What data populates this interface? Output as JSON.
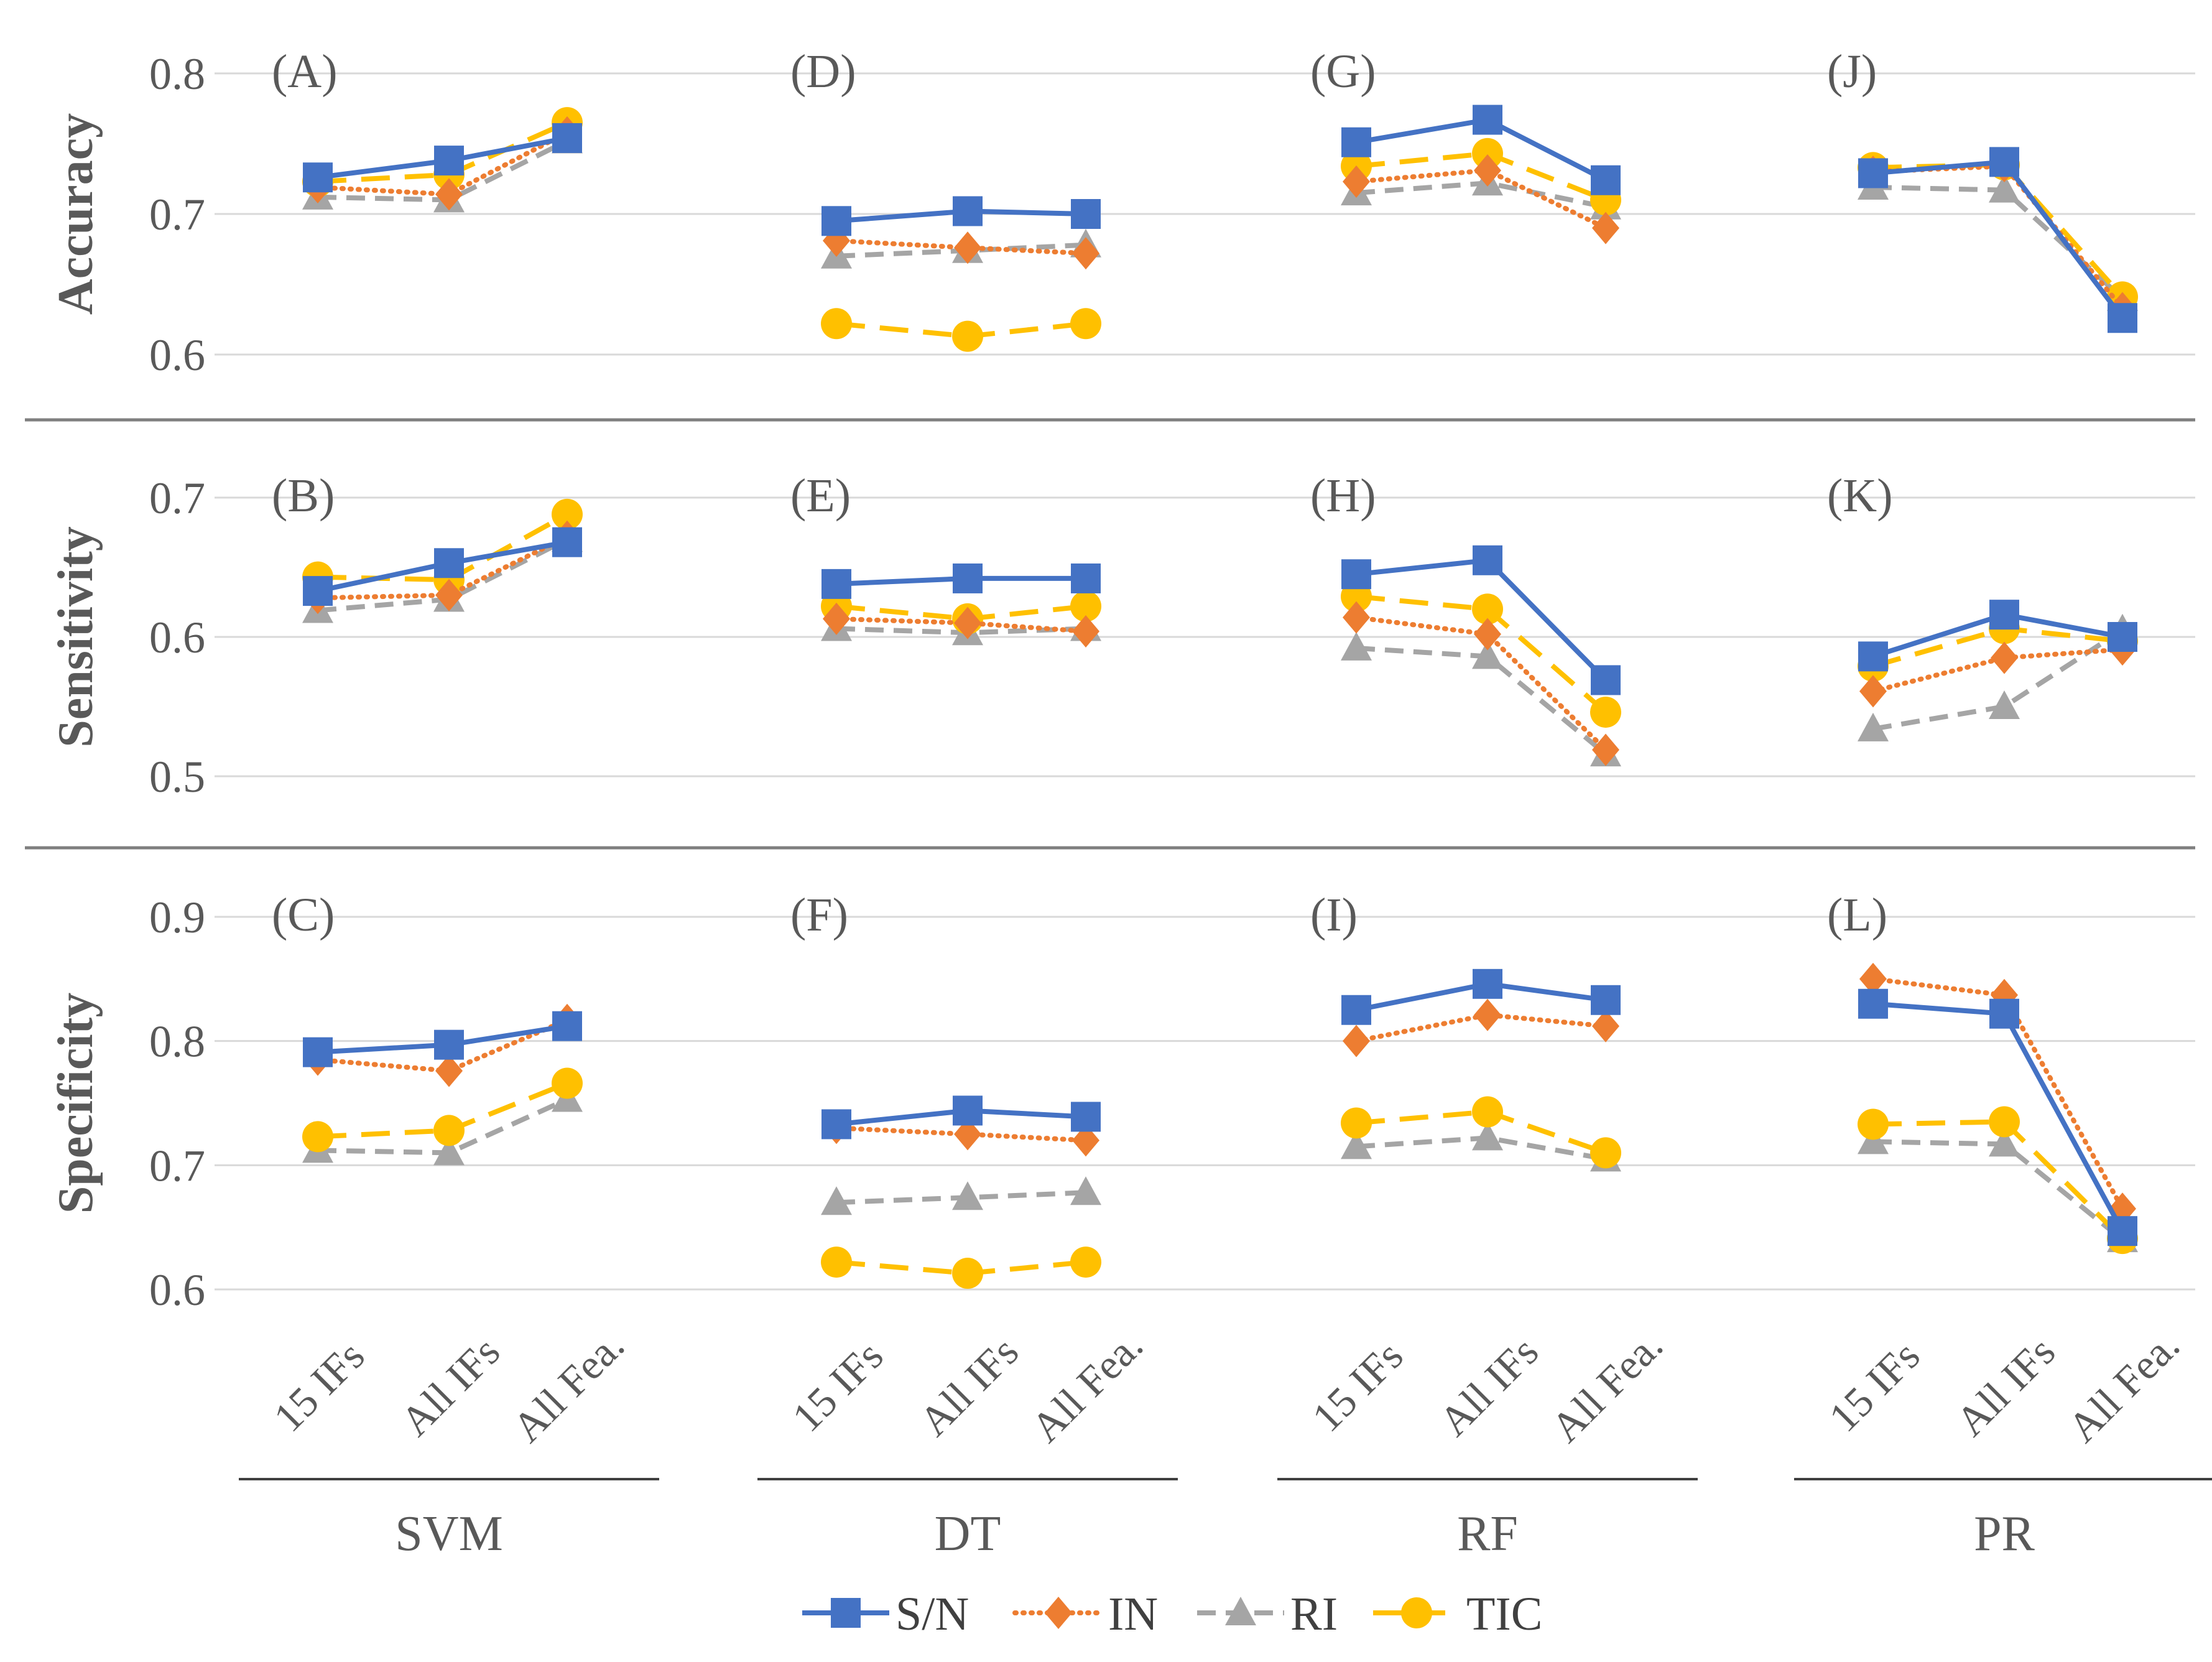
{
  "chart_data": {
    "type": "line",
    "categories": [
      "15 IFs",
      "All IFs",
      "All Fea."
    ],
    "groups": [
      "SVM",
      "DT",
      "RF",
      "PR"
    ],
    "metrics": [
      {
        "name": "Accuracy",
        "ylim": [
          0.6,
          0.8
        ],
        "ticks": [
          "0.8",
          "0.7",
          "0.6"
        ]
      },
      {
        "name": "Sensitivity",
        "ylim": [
          0.5,
          0.7
        ],
        "ticks": [
          "0.7",
          "0.6",
          "0.5"
        ]
      },
      {
        "name": "Specificity",
        "ylim": [
          0.6,
          0.9
        ],
        "ticks": [
          "0.9",
          "0.8",
          "0.7",
          "0.6"
        ]
      }
    ],
    "series_styles": [
      {
        "name": "S/N",
        "color": "#4472C4",
        "marker": "square",
        "dash": "solid"
      },
      {
        "name": "IN",
        "color": "#ED7D31",
        "marker": "diamond",
        "dash": "dotted"
      },
      {
        "name": "RI",
        "color": "#A5A5A5",
        "marker": "triangle",
        "dash": "dashed"
      },
      {
        "name": "TIC",
        "color": "#FFC000",
        "marker": "circle",
        "dash": "longdash"
      }
    ],
    "panels": [
      {
        "label": "(A)",
        "metric": "Accuracy",
        "group": "SVM",
        "series": {
          "S/N": [
            0.726,
            0.738,
            0.754
          ],
          "IN": [
            0.719,
            0.714,
            0.758
          ],
          "RI": [
            0.712,
            0.71,
            0.752
          ],
          "TIC": [
            0.723,
            0.728,
            0.765
          ]
        }
      },
      {
        "label": "(D)",
        "metric": "Accuracy",
        "group": "DT",
        "series": {
          "S/N": [
            0.695,
            0.702,
            0.7
          ],
          "IN": [
            0.681,
            0.676,
            0.672
          ],
          "RI": [
            0.67,
            0.674,
            0.678
          ],
          "TIC": [
            0.622,
            0.613,
            0.622
          ]
        }
      },
      {
        "label": "(G)",
        "metric": "Accuracy",
        "group": "RF",
        "series": {
          "S/N": [
            0.751,
            0.767,
            0.724
          ],
          "IN": [
            0.723,
            0.731,
            0.69
          ],
          "RI": [
            0.715,
            0.722,
            0.705
          ],
          "TIC": [
            0.734,
            0.743,
            0.71
          ]
        }
      },
      {
        "label": "(J)",
        "metric": "Accuracy",
        "group": "PR",
        "series": {
          "S/N": [
            0.729,
            0.737,
            0.626
          ],
          "IN": [
            0.73,
            0.734,
            0.633
          ],
          "RI": [
            0.719,
            0.717,
            0.64
          ],
          "TIC": [
            0.733,
            0.735,
            0.641
          ]
        }
      },
      {
        "label": "(B)",
        "metric": "Sensitivity",
        "group": "SVM",
        "series": {
          "S/N": [
            0.633,
            0.653,
            0.668
          ],
          "IN": [
            0.628,
            0.63,
            0.672
          ],
          "RI": [
            0.619,
            0.627,
            0.67
          ],
          "TIC": [
            0.643,
            0.641,
            0.688
          ]
        }
      },
      {
        "label": "(E)",
        "metric": "Sensitivity",
        "group": "DT",
        "series": {
          "S/N": [
            0.638,
            0.642,
            0.642
          ],
          "IN": [
            0.613,
            0.61,
            0.604
          ],
          "RI": [
            0.606,
            0.603,
            0.606
          ],
          "TIC": [
            0.622,
            0.613,
            0.622
          ]
        }
      },
      {
        "label": "(H)",
        "metric": "Sensitivity",
        "group": "RF",
        "series": {
          "S/N": [
            0.645,
            0.655,
            0.569
          ],
          "IN": [
            0.614,
            0.602,
            0.519
          ],
          "RI": [
            0.592,
            0.586,
            0.516
          ],
          "TIC": [
            0.629,
            0.62,
            0.546
          ]
        }
      },
      {
        "label": "(K)",
        "metric": "Sensitivity",
        "group": "PR",
        "series": {
          "S/N": [
            0.586,
            0.616,
            0.6
          ],
          "IN": [
            0.561,
            0.585,
            0.591
          ],
          "RI": [
            0.534,
            0.55,
            0.605
          ],
          "TIC": [
            0.579,
            0.606,
            0.597
          ]
        }
      },
      {
        "label": "(C)",
        "metric": "Specificity",
        "group": "SVM",
        "series": {
          "S/N": [
            0.791,
            0.797,
            0.812
          ],
          "IN": [
            0.785,
            0.776,
            0.817
          ],
          "RI": [
            0.712,
            0.71,
            0.753
          ],
          "TIC": [
            0.723,
            0.728,
            0.766
          ]
        }
      },
      {
        "label": "(F)",
        "metric": "Specificity",
        "group": "DT",
        "series": {
          "S/N": [
            0.733,
            0.744,
            0.739
          ],
          "IN": [
            0.73,
            0.725,
            0.72
          ],
          "RI": [
            0.67,
            0.674,
            0.678
          ],
          "TIC": [
            0.622,
            0.613,
            0.622
          ]
        }
      },
      {
        "label": "(I)",
        "metric": "Specificity",
        "group": "RF",
        "series": {
          "S/N": [
            0.825,
            0.846,
            0.833
          ],
          "IN": [
            0.8,
            0.821,
            0.812
          ],
          "RI": [
            0.715,
            0.722,
            0.705
          ],
          "TIC": [
            0.734,
            0.743,
            0.71
          ]
        }
      },
      {
        "label": "(L)",
        "metric": "Specificity",
        "group": "PR",
        "series": {
          "S/N": [
            0.83,
            0.822,
            0.647
          ],
          "IN": [
            0.85,
            0.837,
            0.665
          ],
          "RI": [
            0.719,
            0.717,
            0.64
          ],
          "TIC": [
            0.733,
            0.735,
            0.641
          ]
        }
      }
    ],
    "legend": {
      "position": "bottom",
      "entries": [
        "S/N",
        "IN",
        "RI",
        "TIC"
      ]
    },
    "grid": true
  }
}
